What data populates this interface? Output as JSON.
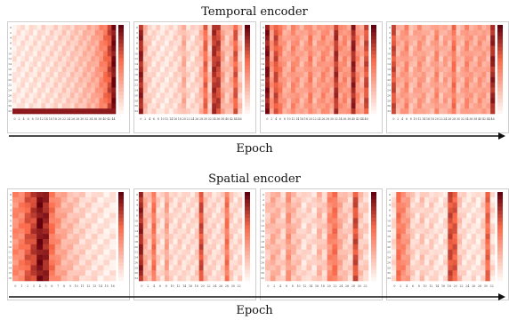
{
  "sections": [
    {
      "title": "Temporal encoder",
      "axis_label": "Epoch"
    },
    {
      "title": "Spatial encoder",
      "axis_label": "Epoch"
    }
  ],
  "colors": {
    "low": "#fff5f0",
    "mid": "#fb6a4a",
    "high": "#67000d",
    "axis": "#111111"
  },
  "chart_data": [
    {
      "type": "heatmap",
      "group": "Temporal encoder",
      "panel": 1,
      "colorbar": true,
      "x_ticks": [
        "0",
        "2",
        "4",
        "6",
        "8",
        "10",
        "12",
        "14",
        "16",
        "18",
        "20",
        "22",
        "24",
        "26",
        "28",
        "30",
        "32",
        "34",
        "36",
        "38",
        "40",
        "42",
        "44"
      ],
      "y_ticks": [
        "0",
        "2",
        "4",
        "6",
        "8",
        "10",
        "12",
        "14",
        "16",
        "18",
        "20",
        "22",
        "24",
        "26",
        "28",
        "30",
        "32"
      ],
      "column_profile": [
        0.05,
        0.06,
        0.07,
        0.07,
        0.08,
        0.08,
        0.09,
        0.1,
        0.1,
        0.11,
        0.12,
        0.13,
        0.15,
        0.16,
        0.18,
        0.2,
        0.22,
        0.25,
        0.28,
        0.3,
        0.35,
        0.45,
        0.55,
        0.7,
        0.95
      ]
    },
    {
      "type": "heatmap",
      "group": "Temporal encoder",
      "panel": 2,
      "colorbar": true,
      "x_ticks": [
        "0",
        "2",
        "4",
        "6",
        "8",
        "10",
        "12",
        "14",
        "16",
        "18",
        "20",
        "22",
        "24",
        "26",
        "28",
        "30",
        "32",
        "34",
        "36",
        "38",
        "40",
        "42",
        "44",
        "46"
      ],
      "y_ticks": [
        "0",
        "2",
        "4",
        "6",
        "8",
        "10",
        "12",
        "14",
        "16",
        "18",
        "20",
        "22",
        "24",
        "26",
        "28",
        "30",
        "32"
      ],
      "column_profile": [
        0.85,
        0.25,
        0.15,
        0.1,
        0.1,
        0.08,
        0.08,
        0.1,
        0.12,
        0.15,
        0.3,
        0.12,
        0.1,
        0.15,
        0.25,
        0.6,
        0.2,
        0.8,
        0.75,
        0.35,
        0.2,
        0.3,
        0.65,
        0.2
      ]
    },
    {
      "type": "heatmap",
      "group": "Temporal encoder",
      "panel": 3,
      "colorbar": true,
      "x_ticks": [
        "0",
        "2",
        "4",
        "6",
        "8",
        "10",
        "12",
        "14",
        "16",
        "18",
        "20",
        "22",
        "24",
        "26",
        "28",
        "30",
        "32",
        "34",
        "36",
        "38",
        "40",
        "42",
        "44",
        "46"
      ],
      "y_ticks": [
        "0",
        "2",
        "4",
        "6",
        "8",
        "10",
        "12",
        "14",
        "16",
        "18",
        "20",
        "22",
        "24",
        "26",
        "28",
        "30",
        "32"
      ],
      "column_profile": [
        0.9,
        0.4,
        0.7,
        0.5,
        0.35,
        0.3,
        0.45,
        0.4,
        0.3,
        0.35,
        0.5,
        0.3,
        0.35,
        0.45,
        0.4,
        0.35,
        0.8,
        0.4,
        0.45,
        0.35,
        0.85,
        0.45,
        0.3,
        0.7
      ]
    },
    {
      "type": "heatmap",
      "group": "Temporal encoder",
      "panel": 4,
      "colorbar": true,
      "x_ticks": [
        "0",
        "2",
        "4",
        "6",
        "8",
        "10",
        "12",
        "14",
        "16",
        "18",
        "20",
        "22",
        "24",
        "26",
        "28",
        "30",
        "32",
        "34",
        "36",
        "38",
        "40",
        "42",
        "44",
        "46"
      ],
      "y_ticks": [
        "0",
        "2",
        "4",
        "6",
        "8",
        "10",
        "12",
        "14",
        "16",
        "18",
        "20",
        "22",
        "24",
        "26",
        "28",
        "30",
        "32"
      ],
      "column_profile": [
        0.7,
        0.3,
        0.35,
        0.45,
        0.25,
        0.3,
        0.4,
        0.35,
        0.25,
        0.3,
        0.45,
        0.25,
        0.35,
        0.3,
        0.55,
        0.25,
        0.3,
        0.45,
        0.35,
        0.3,
        0.4,
        0.35,
        0.3,
        0.85
      ]
    },
    {
      "type": "heatmap",
      "group": "Spatial encoder",
      "panel": 1,
      "colorbar": true,
      "x_ticks": [
        "0",
        "1",
        "2",
        "3",
        "4",
        "5",
        "6",
        "7",
        "8",
        "9",
        "10",
        "11",
        "12",
        "13",
        "14",
        "15",
        "16"
      ],
      "y_ticks": [
        "0",
        "1",
        "2",
        "3",
        "4",
        "5",
        "6",
        "7",
        "8",
        "9",
        "10",
        "11",
        "12",
        "13",
        "14",
        "15",
        "16"
      ],
      "column_profile": [
        0.45,
        0.5,
        0.65,
        0.75,
        0.95,
        0.85,
        0.55,
        0.4,
        0.3,
        0.25,
        0.2,
        0.15,
        0.12,
        0.1,
        0.08,
        0.06,
        0.05
      ]
    },
    {
      "type": "heatmap",
      "group": "Spatial encoder",
      "panel": 2,
      "colorbar": true,
      "x_ticks": [
        "0",
        "2",
        "4",
        "6",
        "8",
        "10",
        "12",
        "14",
        "16",
        "18",
        "20",
        "22",
        "24",
        "26",
        "28",
        "30",
        "32"
      ],
      "y_ticks": [
        "0",
        "2",
        "4",
        "6",
        "8",
        "10",
        "12",
        "14",
        "16",
        "18",
        "20",
        "22",
        "24",
        "26",
        "28",
        "30",
        "32"
      ],
      "column_profile": [
        0.85,
        0.3,
        0.2,
        0.55,
        0.15,
        0.1,
        0.35,
        0.12,
        0.1,
        0.15,
        0.1,
        0.12,
        0.1,
        0.15,
        0.7,
        0.2,
        0.15,
        0.12,
        0.1,
        0.15,
        0.55,
        0.15,
        0.1,
        0.12
      ]
    },
    {
      "type": "heatmap",
      "group": "Spatial encoder",
      "panel": 3,
      "colorbar": true,
      "x_ticks": [
        "0",
        "2",
        "4",
        "6",
        "8",
        "10",
        "12",
        "14",
        "16",
        "18",
        "20",
        "22",
        "24",
        "26",
        "28",
        "30",
        "32"
      ],
      "y_ticks": [
        "0",
        "2",
        "4",
        "6",
        "8",
        "10",
        "12",
        "14",
        "16",
        "18",
        "20",
        "22",
        "24",
        "26",
        "28",
        "30",
        "32"
      ],
      "column_profile": [
        0.2,
        0.3,
        0.25,
        0.15,
        0.4,
        0.25,
        0.2,
        0.1,
        0.15,
        0.1,
        0.25,
        0.15,
        0.45,
        0.55,
        0.3,
        0.2,
        0.15,
        0.7,
        0.2,
        0.15
      ]
    },
    {
      "type": "heatmap",
      "group": "Spatial encoder",
      "panel": 4,
      "colorbar": true,
      "x_ticks": [
        "0",
        "2",
        "4",
        "6",
        "8",
        "10",
        "12",
        "14",
        "16",
        "18",
        "20",
        "22",
        "24",
        "26",
        "28",
        "30",
        "32"
      ],
      "y_ticks": [
        "0",
        "2",
        "4",
        "6",
        "8",
        "10",
        "12",
        "14",
        "16",
        "18",
        "20",
        "22",
        "24",
        "26",
        "28",
        "30",
        "32"
      ],
      "column_profile": [
        0.1,
        0.55,
        0.45,
        0.35,
        0.15,
        0.1,
        0.2,
        0.1,
        0.15,
        0.1,
        0.05,
        0.1,
        0.7,
        0.65,
        0.2,
        0.1,
        0.08,
        0.1,
        0.05,
        0.15,
        0.6,
        0.1
      ]
    }
  ]
}
